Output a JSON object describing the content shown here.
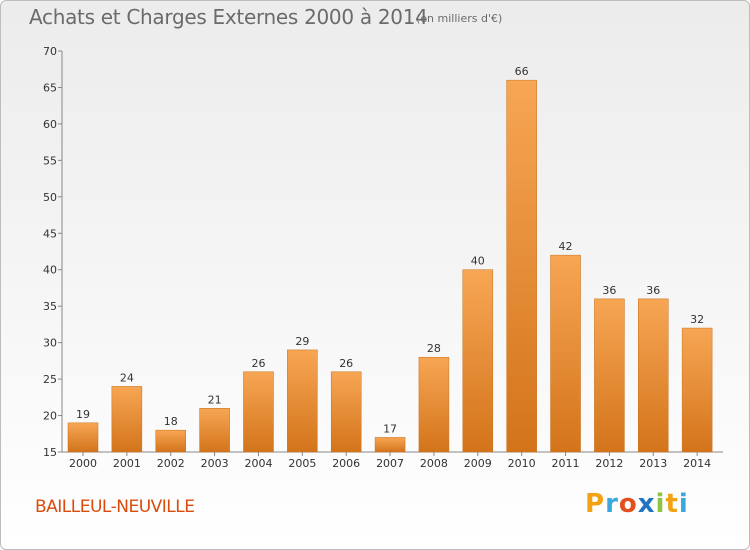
{
  "title": "Achats et Charges Externes 2000 à 2014",
  "unit_note": "(en milliers d'€)",
  "commune": "BAILLEUL-NEUVILLE",
  "logo_text": "Proxiti",
  "colors": {
    "bar_light": "#f7a654",
    "bar_dark": "#d3741b",
    "commune_text": "#d94c0b",
    "title_text": "#6b6b6b"
  },
  "chart_data": {
    "type": "bar",
    "title": "Achats et Charges Externes 2000 à 2014",
    "subtitle": "(en milliers d'€)",
    "categories": [
      "2000",
      "2001",
      "2002",
      "2003",
      "2004",
      "2005",
      "2006",
      "2007",
      "2008",
      "2009",
      "2010",
      "2011",
      "2012",
      "2013",
      "2014"
    ],
    "values": [
      19,
      24,
      18,
      21,
      26,
      29,
      26,
      17,
      28,
      40,
      66,
      42,
      36,
      36,
      32
    ],
    "ylim": [
      15,
      70
    ],
    "yticks": [
      15,
      20,
      25,
      30,
      35,
      40,
      45,
      50,
      55,
      60,
      65,
      70
    ],
    "grid": false,
    "data_labels": true
  }
}
